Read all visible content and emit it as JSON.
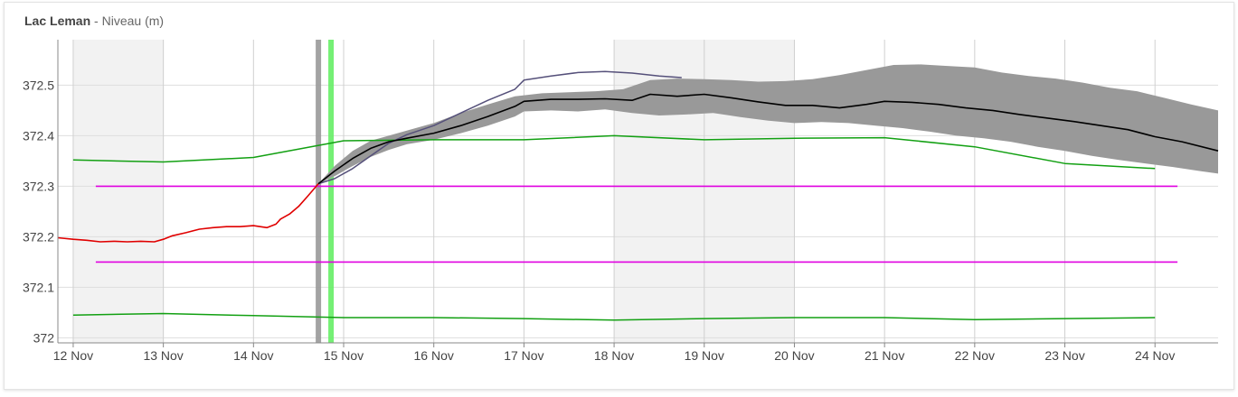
{
  "title": {
    "location": "Lac Leman",
    "separator": " - ",
    "metric": "Niveau (m)"
  },
  "colors": {
    "observed": "#e00000",
    "forecast": "#000000",
    "envelope": "#999999",
    "alt_forecast": "#55507a",
    "bounds": "#12a012",
    "thresholds": "#e000e0",
    "now_marker": "#999999",
    "current_marker": "#66ee66",
    "weekend_shade": "#f2f2f2"
  },
  "chart_data": {
    "type": "line",
    "title": "Lac Leman - Niveau (m)",
    "xlabel": "",
    "ylabel": "",
    "x_ticks": [
      "12 Nov",
      "13 Nov",
      "14 Nov",
      "15 Nov",
      "16 Nov",
      "17 Nov",
      "18 Nov",
      "19 Nov",
      "20 Nov",
      "21 Nov",
      "22 Nov",
      "23 Nov",
      "24 Nov"
    ],
    "y_ticks": [
      "372",
      "372.1",
      "372.2",
      "372.3",
      "372.4",
      "372.5"
    ],
    "xlim": [
      11.83,
      24.7
    ],
    "ylim": [
      371.99,
      372.59
    ],
    "grid": true,
    "shaded_day_ranges": [
      [
        12.0,
        13.0
      ],
      [
        18.0,
        20.0
      ]
    ],
    "vertical_markers": [
      {
        "name": "now",
        "x": 14.72
      },
      {
        "name": "current",
        "x": 14.86
      }
    ],
    "series": [
      {
        "name": "",
        "role": "observed",
        "x": [
          11.83,
          12.0,
          12.15,
          12.3,
          12.45,
          12.6,
          12.75,
          12.9,
          13.0,
          13.1,
          13.25,
          13.4,
          13.55,
          13.7,
          13.85,
          14.0,
          14.15,
          14.25,
          14.3,
          14.4,
          14.5,
          14.6,
          14.72
        ],
        "y": [
          372.198,
          372.195,
          372.193,
          372.19,
          372.191,
          372.19,
          372.191,
          372.19,
          372.195,
          372.202,
          372.208,
          372.215,
          372.218,
          372.22,
          372.22,
          372.222,
          372.218,
          372.225,
          372.235,
          372.245,
          372.26,
          372.28,
          372.305
        ]
      },
      {
        "name": "",
        "role": "forecast",
        "x": [
          14.72,
          14.9,
          15.1,
          15.3,
          15.5,
          15.7,
          16.0,
          16.3,
          16.6,
          16.9,
          17.0,
          17.3,
          17.6,
          17.9,
          18.2,
          18.4,
          18.7,
          19.0,
          19.3,
          19.6,
          19.9,
          20.2,
          20.5,
          20.8,
          21.0,
          21.3,
          21.6,
          21.9,
          22.2,
          22.5,
          22.8,
          23.1,
          23.4,
          23.7,
          24.0,
          24.3,
          24.7
        ],
        "y": [
          372.305,
          372.33,
          372.355,
          372.375,
          372.388,
          372.395,
          372.405,
          372.42,
          372.438,
          372.458,
          372.468,
          372.472,
          372.472,
          372.473,
          372.47,
          372.482,
          372.478,
          372.482,
          372.475,
          372.467,
          372.46,
          372.46,
          372.455,
          372.462,
          372.468,
          372.466,
          372.462,
          372.455,
          372.45,
          372.442,
          372.435,
          372.428,
          372.42,
          372.412,
          372.398,
          372.388,
          372.37
        ]
      },
      {
        "name": "",
        "role": "envelope_upper",
        "x": [
          14.72,
          14.9,
          15.1,
          15.3,
          15.5,
          15.7,
          16.0,
          16.3,
          16.6,
          16.9,
          17.2,
          17.5,
          17.8,
          18.1,
          18.4,
          18.7,
          19.0,
          19.3,
          19.6,
          19.9,
          20.2,
          20.5,
          20.8,
          21.1,
          21.4,
          21.7,
          22.0,
          22.3,
          22.6,
          22.9,
          23.2,
          23.5,
          23.8,
          24.1,
          24.4,
          24.7
        ],
        "y": [
          372.305,
          372.34,
          372.37,
          372.39,
          372.4,
          372.41,
          372.425,
          372.445,
          372.462,
          372.478,
          372.484,
          372.486,
          372.488,
          372.492,
          372.51,
          372.513,
          372.512,
          372.51,
          372.507,
          372.508,
          372.512,
          372.52,
          372.53,
          372.54,
          372.541,
          372.538,
          372.535,
          372.525,
          372.518,
          372.513,
          372.505,
          372.495,
          372.488,
          372.475,
          372.462,
          372.45
        ]
      },
      {
        "name": "",
        "role": "envelope_lower",
        "x": [
          14.72,
          14.9,
          15.1,
          15.3,
          15.5,
          15.7,
          16.0,
          16.3,
          16.6,
          16.9,
          17.0,
          17.3,
          17.6,
          17.9,
          18.2,
          18.5,
          18.8,
          19.1,
          19.4,
          19.7,
          20.0,
          20.3,
          20.6,
          20.9,
          21.2,
          21.5,
          21.8,
          22.1,
          22.4,
          22.7,
          23.0,
          23.3,
          23.6,
          23.9,
          24.2,
          24.5,
          24.7
        ],
        "y": [
          372.305,
          372.32,
          372.34,
          372.358,
          372.372,
          372.383,
          372.392,
          372.405,
          372.42,
          372.438,
          372.448,
          372.45,
          372.448,
          372.452,
          372.445,
          372.44,
          372.442,
          372.445,
          372.437,
          372.43,
          372.425,
          372.427,
          372.425,
          372.42,
          372.415,
          372.408,
          372.4,
          372.395,
          372.388,
          372.378,
          372.37,
          372.36,
          372.352,
          372.345,
          372.338,
          372.33,
          372.325
        ]
      },
      {
        "name": "",
        "role": "alt_forecast",
        "x": [
          14.72,
          14.9,
          15.1,
          15.3,
          15.5,
          15.7,
          16.0,
          16.3,
          16.6,
          16.9,
          17.0,
          17.3,
          17.6,
          17.9,
          18.2,
          18.5,
          18.75
        ],
        "y": [
          372.305,
          372.315,
          372.335,
          372.36,
          372.385,
          372.402,
          372.42,
          372.445,
          372.47,
          372.492,
          372.51,
          372.518,
          372.525,
          372.527,
          372.524,
          372.518,
          372.515
        ]
      },
      {
        "name": "",
        "role": "upper_bound",
        "x": [
          12.0,
          13.0,
          14.0,
          15.0,
          16.0,
          17.0,
          18.0,
          19.0,
          20.0,
          21.0,
          22.0,
          23.0,
          24.0
        ],
        "y": [
          372.352,
          372.348,
          372.357,
          372.39,
          372.392,
          372.392,
          372.4,
          372.392,
          372.395,
          372.396,
          372.378,
          372.345,
          372.335
        ]
      },
      {
        "name": "",
        "role": "lower_bound",
        "x": [
          12.0,
          13.0,
          14.0,
          15.0,
          16.0,
          17.0,
          18.0,
          19.0,
          20.0,
          21.0,
          22.0,
          23.0,
          24.0
        ],
        "y": [
          372.045,
          372.048,
          372.044,
          372.04,
          372.04,
          372.038,
          372.035,
          372.038,
          372.04,
          372.04,
          372.036,
          372.038,
          372.04
        ]
      },
      {
        "name": "",
        "role": "threshold_high",
        "x": [
          12.25,
          24.25
        ],
        "y": [
          372.3,
          372.3
        ]
      },
      {
        "name": "",
        "role": "threshold_low",
        "x": [
          12.25,
          24.25
        ],
        "y": [
          372.15,
          372.15
        ]
      }
    ]
  }
}
